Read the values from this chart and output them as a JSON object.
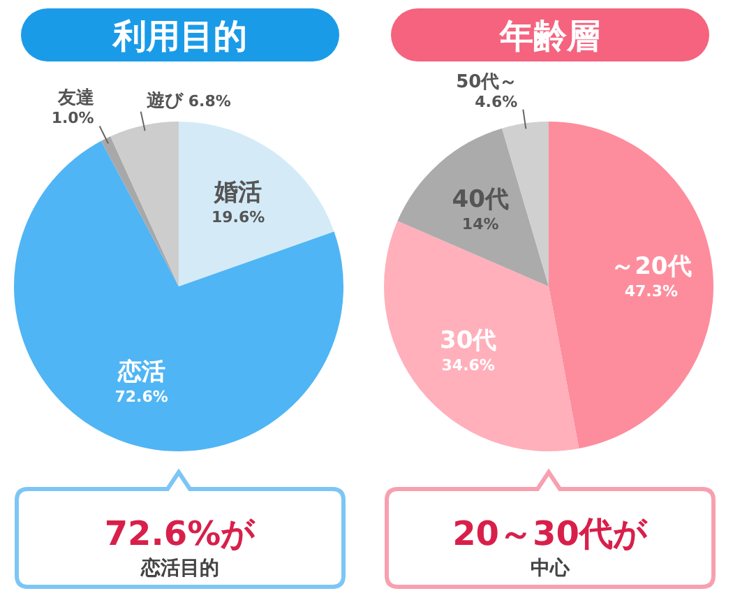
{
  "chart_data": [
    {
      "type": "pie",
      "title": "利用目的",
      "categories": [
        "婚活",
        "恋活",
        "友達",
        "遊び"
      ],
      "values": [
        19.6,
        72.6,
        1.0,
        6.8
      ],
      "value_labels": [
        "19.6%",
        "72.6%",
        "1.0%",
        "6.8%"
      ],
      "colors": [
        "#d4ebf7",
        "#4fb5f5",
        "#a8a8a8",
        "#cdcdcd"
      ],
      "annotations": [
        "72.6%が",
        "恋活目的"
      ]
    },
    {
      "type": "pie",
      "title": "年齢層",
      "categories": [
        "～20代",
        "30代",
        "40代",
        "50代～"
      ],
      "values": [
        47.3,
        34.6,
        14,
        4.6
      ],
      "value_labels": [
        "47.3%",
        "34.6%",
        "14%",
        "4.6%"
      ],
      "colors": [
        "#fd8d9c",
        "#ffb0bb",
        "#ababab",
        "#d0d0d0"
      ],
      "annotations": [
        "20～30代が",
        "中心"
      ]
    }
  ]
}
